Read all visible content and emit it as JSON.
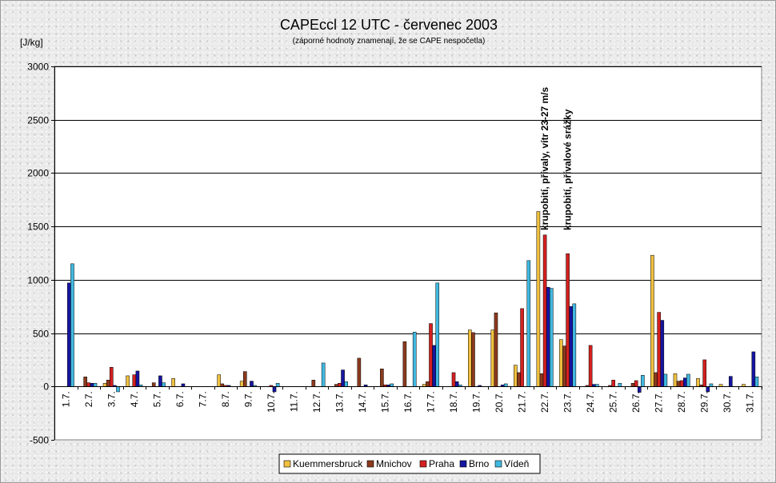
{
  "title": "CAPEccl 12 UTC - červenec 2003",
  "subtitle": "(záporné hodnoty znamenají, že se CAPE nespočetla)",
  "ylabel": "[J/kg]",
  "chart_data": {
    "type": "bar",
    "title": "CAPEccl 12 UTC - červenec 2003",
    "subtitle": "(záporné hodnoty znamenají, že se CAPE nespočetla)",
    "ylabel": "[J/kg]",
    "xlabel": "",
    "ylim": [
      -500,
      3000
    ],
    "yticks": [
      -500,
      0,
      500,
      1000,
      1500,
      2000,
      2500,
      3000
    ],
    "grid": true,
    "legend_position": "bottom",
    "categories": [
      "1.7.",
      "2.7.",
      "3.7.",
      "4.7.",
      "5.7.",
      "6.7.",
      "7.7.",
      "8.7.",
      "9.7.",
      "10.7.",
      "11.7.",
      "12.7.",
      "13.7.",
      "14.7.",
      "15.7.",
      "16.7.",
      "17.7.",
      "18.7.",
      "19.7.",
      "20.7.",
      "21.7.",
      "22.7.",
      "23.7.",
      "24.7.",
      "25.7.",
      "26.7.",
      "27.7.",
      "28.7.",
      "29.7.",
      "30.7.",
      "31.7."
    ],
    "series": [
      {
        "name": "Kuemmersbruck",
        "color": "#f0c040",
        "values": [
          0,
          0,
          30,
          100,
          0,
          75,
          0,
          110,
          50,
          0,
          0,
          0,
          0,
          0,
          0,
          0,
          20,
          0,
          530,
          530,
          200,
          1640,
          440,
          0,
          0,
          0,
          1230,
          120,
          75,
          20,
          20
        ]
      },
      {
        "name": "Mnichov",
        "color": "#8b3a1e",
        "values": [
          0,
          90,
          60,
          0,
          35,
          0,
          0,
          25,
          140,
          0,
          0,
          60,
          20,
          265,
          165,
          420,
          45,
          0,
          505,
          690,
          130,
          120,
          380,
          10,
          10,
          30,
          130,
          50,
          15,
          0,
          0
        ]
      },
      {
        "name": "Praha",
        "color": "#d42020",
        "values": [
          0,
          35,
          180,
          110,
          0,
          0,
          0,
          10,
          0,
          10,
          0,
          0,
          30,
          0,
          15,
          0,
          590,
          130,
          0,
          0,
          730,
          1420,
          1245,
          385,
          60,
          55,
          695,
          55,
          250,
          0,
          0
        ]
      },
      {
        "name": "Brno",
        "color": "#1515a0",
        "values": [
          970,
          30,
          10,
          145,
          100,
          25,
          0,
          10,
          50,
          -50,
          0,
          0,
          155,
          15,
          15,
          0,
          385,
          45,
          10,
          15,
          0,
          930,
          750,
          20,
          0,
          -55,
          620,
          80,
          -50,
          95,
          325
        ]
      },
      {
        "name": "Vídeň",
        "color": "#40b8e0",
        "values": [
          1150,
          30,
          -50,
          15,
          35,
          0,
          0,
          0,
          10,
          30,
          0,
          220,
          45,
          0,
          25,
          510,
          970,
          15,
          0,
          25,
          1180,
          920,
          775,
          20,
          30,
          105,
          115,
          115,
          25,
          0,
          90
        ]
      }
    ],
    "annotations": [
      {
        "category": "22.7.",
        "text": "krupobití, přívaly, vítr 23-27 m/s"
      },
      {
        "category": "23.7.",
        "text": "krupobití, přívalové srážky"
      }
    ]
  }
}
